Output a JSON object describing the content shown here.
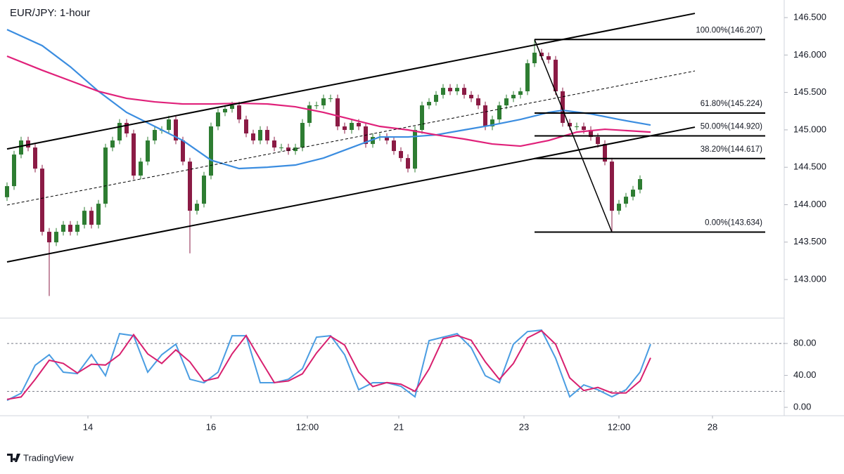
{
  "chart_data": [
    {
      "type": "candlestick",
      "title": "EUR/JPY: 1-hour",
      "up_color": "#2e7d32",
      "down_color": "#8b1b45",
      "xlim": [
        0,
        110.5
      ],
      "ylim": [
        142.494,
        146.735
      ],
      "yticks": [
        {
          "value": 143,
          "label": "143.000"
        },
        {
          "value": 143.5,
          "label": "143.500"
        },
        {
          "value": 144,
          "label": "144.000"
        },
        {
          "value": 144.5,
          "label": "144.500"
        },
        {
          "value": 145,
          "label": "145.000"
        },
        {
          "value": 145.5,
          "label": "145.500"
        },
        {
          "value": 146,
          "label": "146.000"
        },
        {
          "value": 146.5,
          "label": "146.500"
        }
      ],
      "x": [
        0,
        1,
        2,
        3,
        4,
        5,
        6,
        7,
        8,
        9,
        10,
        11,
        12,
        13,
        14,
        15,
        16,
        17,
        18,
        19,
        20,
        21,
        22,
        23,
        24,
        25,
        26,
        27,
        28,
        29,
        30,
        31,
        32,
        33,
        34,
        35,
        36,
        37,
        38,
        39,
        40,
        41,
        42,
        43,
        44,
        45,
        46,
        47,
        48,
        49,
        50,
        51,
        52,
        53,
        54,
        55,
        56,
        57,
        58,
        59,
        60,
        61,
        62,
        63,
        64,
        65,
        66,
        67,
        68,
        69,
        70,
        71,
        72,
        73,
        74,
        75,
        76,
        77,
        78,
        79,
        80,
        81,
        82,
        83,
        84,
        85,
        86,
        87,
        88,
        89,
        90
      ],
      "open": [
        144.1,
        144.248,
        144.67,
        144.858,
        144.764,
        144.482,
        143.638,
        143.497,
        143.638,
        143.732,
        143.638,
        143.732,
        143.919,
        143.732,
        144.013,
        144.764,
        144.858,
        145.093,
        144.952,
        144.389,
        144.576,
        144.858,
        144.999,
        144.999,
        145.139,
        144.858,
        144.576,
        143.919,
        144.013,
        144.389,
        145.046,
        145.233,
        145.28,
        145.327,
        145.139,
        144.952,
        144.858,
        144.999,
        144.858,
        144.764,
        144.764,
        144.717,
        144.764,
        145.093,
        145.327,
        145.327,
        145.421,
        145.421,
        145.046,
        144.999,
        145.093,
        145.046,
        144.811,
        144.905,
        144.905,
        144.858,
        144.717,
        144.623,
        144.482,
        144.999,
        145.327,
        145.374,
        145.468,
        145.561,
        145.515,
        145.561,
        145.468,
        145.421,
        145.327,
        145.046,
        145.139,
        145.327,
        145.421,
        145.468,
        145.515,
        145.89,
        146.031,
        145.984,
        145.937,
        145.515,
        145.093,
        145.046,
        145.046,
        144.999,
        144.905,
        144.811,
        144.576,
        143.919,
        144.013,
        144.107,
        144.201
      ],
      "high": [
        144.298,
        144.72,
        144.908,
        144.908,
        144.814,
        144.532,
        143.688,
        143.688,
        143.782,
        143.782,
        143.782,
        143.969,
        143.969,
        144.063,
        144.814,
        144.908,
        145.143,
        145.143,
        145.002,
        144.626,
        144.908,
        145.049,
        145.049,
        145.189,
        145.189,
        144.908,
        144.626,
        144.063,
        144.439,
        145.096,
        145.283,
        145.33,
        145.377,
        145.377,
        145.189,
        145.002,
        145.049,
        145.049,
        144.908,
        144.814,
        144.814,
        144.814,
        145.143,
        145.377,
        145.377,
        145.471,
        145.471,
        145.471,
        145.096,
        145.143,
        145.143,
        145.096,
        144.955,
        144.955,
        144.955,
        144.908,
        144.767,
        144.673,
        145.049,
        145.377,
        145.424,
        145.518,
        145.611,
        145.611,
        145.611,
        145.611,
        145.518,
        145.471,
        145.377,
        145.189,
        145.377,
        145.471,
        145.518,
        145.565,
        145.94,
        146.207,
        146.081,
        146.034,
        145.987,
        145.565,
        145.143,
        145.096,
        145.096,
        145.049,
        144.955,
        144.861,
        144.626,
        144.063,
        144.157,
        144.251,
        144.392
      ],
      "low": [
        144.05,
        144.198,
        144.62,
        144.714,
        144.432,
        143.588,
        142.78,
        143.447,
        143.588,
        143.588,
        143.588,
        143.682,
        143.682,
        143.682,
        143.963,
        144.714,
        144.808,
        144.902,
        144.339,
        144.339,
        144.526,
        144.808,
        144.949,
        144.949,
        144.808,
        144.526,
        143.35,
        143.869,
        143.963,
        144.339,
        144.996,
        145.183,
        145.23,
        145.089,
        144.902,
        144.808,
        144.808,
        144.808,
        144.714,
        144.714,
        144.667,
        144.667,
        144.714,
        145.043,
        145.277,
        145.277,
        145.371,
        144.996,
        144.949,
        144.949,
        144.996,
        144.761,
        144.761,
        144.855,
        144.808,
        144.667,
        144.573,
        144.432,
        144.432,
        144.949,
        145.277,
        145.324,
        145.418,
        145.465,
        145.465,
        145.418,
        145.371,
        145.277,
        144.996,
        144.996,
        145.089,
        145.277,
        145.371,
        145.418,
        145.465,
        145.84,
        145.934,
        145.887,
        145.465,
        145.043,
        144.996,
        144.996,
        144.949,
        144.855,
        144.761,
        144.526,
        143.634,
        143.869,
        143.963,
        144.057,
        144.151
      ],
      "close": [
        144.248,
        144.67,
        144.858,
        144.764,
        144.482,
        143.638,
        143.497,
        143.638,
        143.732,
        143.638,
        143.732,
        143.919,
        143.732,
        144.013,
        144.764,
        144.858,
        145.093,
        144.952,
        144.389,
        144.576,
        144.858,
        144.999,
        144.999,
        145.139,
        144.858,
        144.576,
        143.919,
        144.013,
        144.389,
        145.046,
        145.233,
        145.28,
        145.327,
        145.139,
        144.952,
        144.858,
        144.999,
        144.858,
        144.764,
        144.764,
        144.717,
        144.764,
        145.093,
        145.327,
        145.327,
        145.421,
        145.421,
        145.046,
        144.999,
        145.093,
        145.046,
        144.811,
        144.905,
        144.905,
        144.858,
        144.717,
        144.623,
        144.482,
        144.999,
        145.327,
        145.374,
        145.468,
        145.561,
        145.515,
        145.561,
        145.468,
        145.421,
        145.327,
        145.046,
        145.139,
        145.327,
        145.421,
        145.468,
        145.515,
        145.89,
        146.031,
        145.984,
        145.937,
        145.515,
        145.093,
        145.046,
        145.046,
        144.999,
        144.905,
        144.811,
        144.576,
        143.919,
        144.013,
        144.107,
        144.201,
        144.342
      ],
      "series": [
        {
          "color": "#3b8de0",
          "x": [
            0,
            5,
            9,
            13,
            17,
            21,
            25,
            29,
            33,
            37,
            41,
            45,
            49,
            53,
            57,
            61,
            65,
            69,
            73,
            77,
            79,
            83,
            87,
            91.5
          ],
          "values": [
            146.34,
            146.125,
            145.843,
            145.515,
            145.233,
            145.046,
            144.858,
            144.595,
            144.483,
            144.501,
            144.53,
            144.623,
            144.764,
            144.905,
            144.905,
            144.933,
            144.999,
            145.064,
            145.139,
            145.233,
            145.261,
            145.214,
            145.139,
            145.064
          ]
        },
        {
          "color": "#e0217a",
          "x": [
            0,
            5,
            9,
            13,
            17,
            21,
            25,
            29,
            33,
            37,
            41,
            45,
            49,
            53,
            57,
            61,
            65,
            69,
            73,
            77,
            81,
            85,
            91.5
          ],
          "values": [
            145.984,
            145.796,
            145.656,
            145.515,
            145.421,
            145.374,
            145.346,
            145.346,
            145.355,
            145.346,
            145.308,
            145.233,
            145.139,
            145.046,
            144.999,
            144.933,
            144.877,
            144.811,
            144.783,
            144.858,
            144.97,
            145.008,
            144.97
          ]
        }
      ],
      "lines": [
        {
          "color": "#000000",
          "dash": false,
          "x": [
            0,
            97.8
          ],
          "values": [
            144.745,
            146.556
          ]
        },
        {
          "color": "#000000",
          "dash": false,
          "x": [
            0,
            97.8
          ],
          "values": [
            143.235,
            145.036
          ]
        },
        {
          "color": "#000000",
          "dash": true,
          "x": [
            0,
            97.8
          ],
          "values": [
            143.995,
            145.787
          ]
        }
      ],
      "fib": {
        "color": "#000000",
        "x": [
          75,
          107.8
        ],
        "levels": [
          {
            "value": 146.207,
            "label": "100.00%(146.207)"
          },
          {
            "value": 145.224,
            "label": "61.80%(145.224)"
          },
          {
            "value": 144.92,
            "label": "50.00%(144.920)"
          },
          {
            "value": 144.617,
            "label": "38.20%(144.617)"
          },
          {
            "value": 143.634,
            "label": "0.00%(143.634)"
          }
        ],
        "trend": {
          "x": [
            75,
            86
          ],
          "values": [
            146.207,
            143.634
          ]
        }
      }
    },
    {
      "type": "line",
      "xlim": [
        0,
        110.5
      ],
      "ylim": [
        -10.5,
        110
      ],
      "yticks": [
        {
          "value": 0,
          "label": "0.00"
        },
        {
          "value": 40,
          "label": "40.00"
        },
        {
          "value": 80,
          "label": "80.00"
        }
      ],
      "levels": [
        20,
        80
      ],
      "xticks": [
        {
          "value": 11.5,
          "label": "14"
        },
        {
          "value": 29,
          "label": "16"
        },
        {
          "value": 42.7,
          "label": "12:00"
        },
        {
          "value": 55.7,
          "label": "21"
        },
        {
          "value": 73.5,
          "label": "23"
        },
        {
          "value": 87,
          "label": "12:00"
        },
        {
          "value": 100.3,
          "label": "28"
        }
      ],
      "x": [
        0,
        2,
        4,
        6,
        8,
        10,
        12,
        14,
        16,
        18,
        20,
        22,
        24,
        26,
        28,
        30,
        32,
        34,
        36,
        38,
        40,
        42,
        44,
        46,
        48,
        50,
        52,
        54,
        56,
        58,
        60,
        62,
        64,
        66,
        68,
        70,
        72,
        74,
        76,
        78,
        80,
        82,
        84,
        86,
        88,
        90,
        91.5
      ],
      "series": [
        {
          "color": "#4a9de2",
          "values": [
            8.8,
            17.6,
            52.7,
            65.9,
            44,
            42.2,
            65.9,
            39.6,
            92.3,
            89.7,
            44,
            65.9,
            79.1,
            35.2,
            30.8,
            44,
            89.7,
            89.7,
            30.8,
            30.8,
            35.2,
            48.4,
            87.9,
            89.7,
            65.9,
            22,
            30.8,
            30.8,
            26.4,
            13.2,
            83.5,
            87.9,
            92.3,
            74.7,
            39.6,
            30.8,
            79.1,
            94.9,
            96.7,
            61.5,
            13.2,
            28.1,
            22,
            13.2,
            22,
            44,
            79.1
          ]
        },
        {
          "color": "#d8206f",
          "values": [
            10,
            13,
            35,
            59,
            55,
            43,
            54,
            53,
            66,
            91,
            67,
            55,
            72,
            57,
            33,
            37,
            67,
            90,
            60,
            31,
            33,
            42,
            68,
            89,
            78,
            44,
            26,
            31,
            29,
            20,
            48,
            86,
            90,
            84,
            57,
            35,
            55,
            87,
            96,
            79,
            37,
            21,
            25,
            18,
            18,
            33,
            62
          ]
        }
      ]
    },
    {
      "footer": "TradingView"
    }
  ]
}
